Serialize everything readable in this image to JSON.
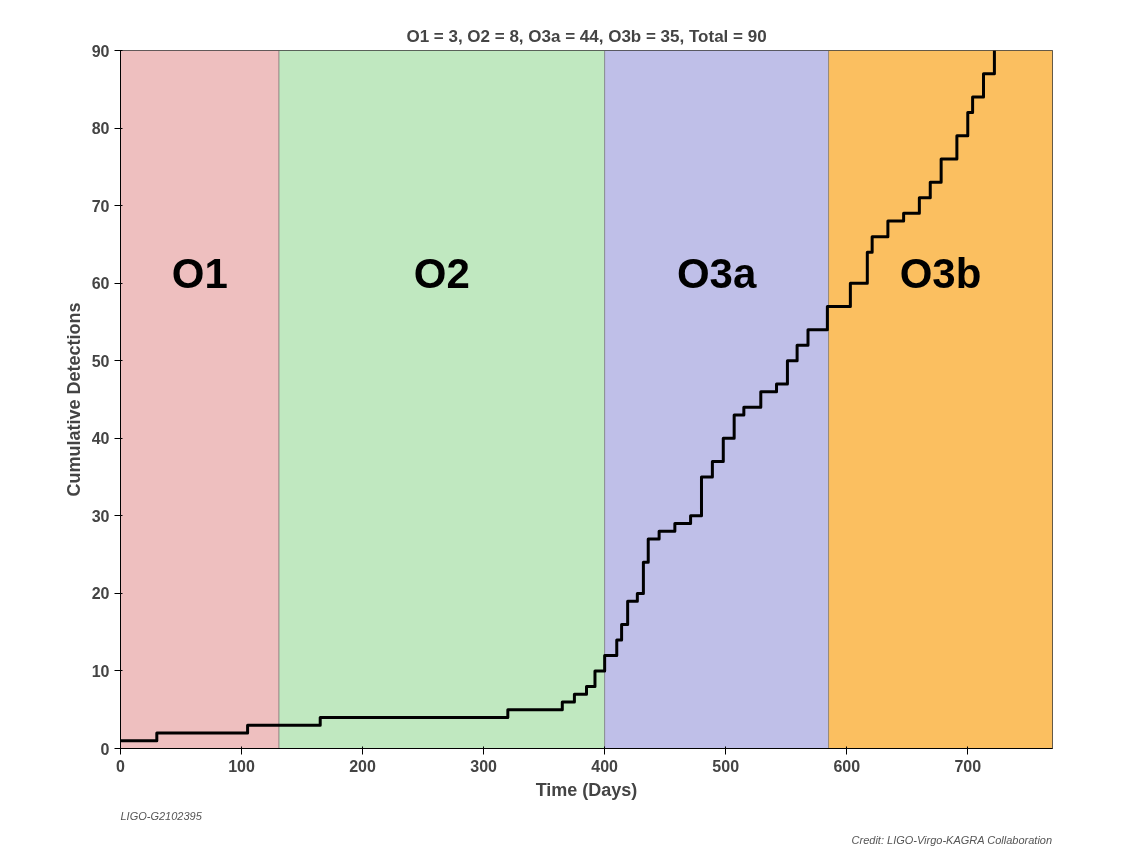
{
  "chart_data": {
    "type": "step",
    "title": "O1 = 3, O2 = 8, O3a = 44, O3b = 35, Total = 90",
    "xlabel": "Time (Days)",
    "ylabel": "Cumulative Detections",
    "x": [
      0,
      30,
      105,
      165,
      320,
      365,
      375,
      385,
      392,
      400,
      410,
      414,
      419,
      427,
      432,
      436,
      445,
      458,
      471,
      480,
      489,
      498,
      507,
      515,
      529,
      542,
      551,
      559,
      568,
      584,
      603,
      617,
      621,
      634,
      647,
      660,
      669,
      678,
      691,
      700,
      704,
      713,
      722
    ],
    "series": [
      {
        "color": "#000000",
        "values": [
          1,
          2,
          3,
          4,
          5,
          6,
          7,
          8,
          10,
          12,
          14,
          16,
          19,
          20,
          24,
          27,
          28,
          29,
          30,
          35,
          37,
          40,
          43,
          44,
          46,
          47,
          50,
          52,
          54,
          57,
          60,
          64,
          66,
          68,
          69,
          71,
          73,
          76,
          79,
          82,
          84,
          87,
          90
        ]
      }
    ],
    "xlim": [
      0,
      770
    ],
    "ylim": [
      0,
      90
    ],
    "xticks": [
      0,
      100,
      200,
      300,
      400,
      500,
      600,
      700
    ],
    "yticks": [
      0,
      10,
      20,
      30,
      40,
      50,
      60,
      70,
      80,
      90
    ],
    "grid": false,
    "bands": [
      {
        "axis": "x",
        "from": 0,
        "to": 131,
        "label": "O1",
        "color": "#eebfbf"
      },
      {
        "axis": "x",
        "from": 131,
        "to": 400,
        "label": "O2",
        "color": "#c0e8c0"
      },
      {
        "axis": "x",
        "from": 400,
        "to": 585,
        "label": "O3a",
        "color": "#bfbfe8"
      },
      {
        "axis": "x",
        "from": 585,
        "to": 770,
        "label": "O3b",
        "color": "#fbbf60"
      }
    ],
    "annotations": [
      "LIGO-G2102395",
      "Credit: LIGO-Virgo-KAGRA Collaboration"
    ]
  }
}
